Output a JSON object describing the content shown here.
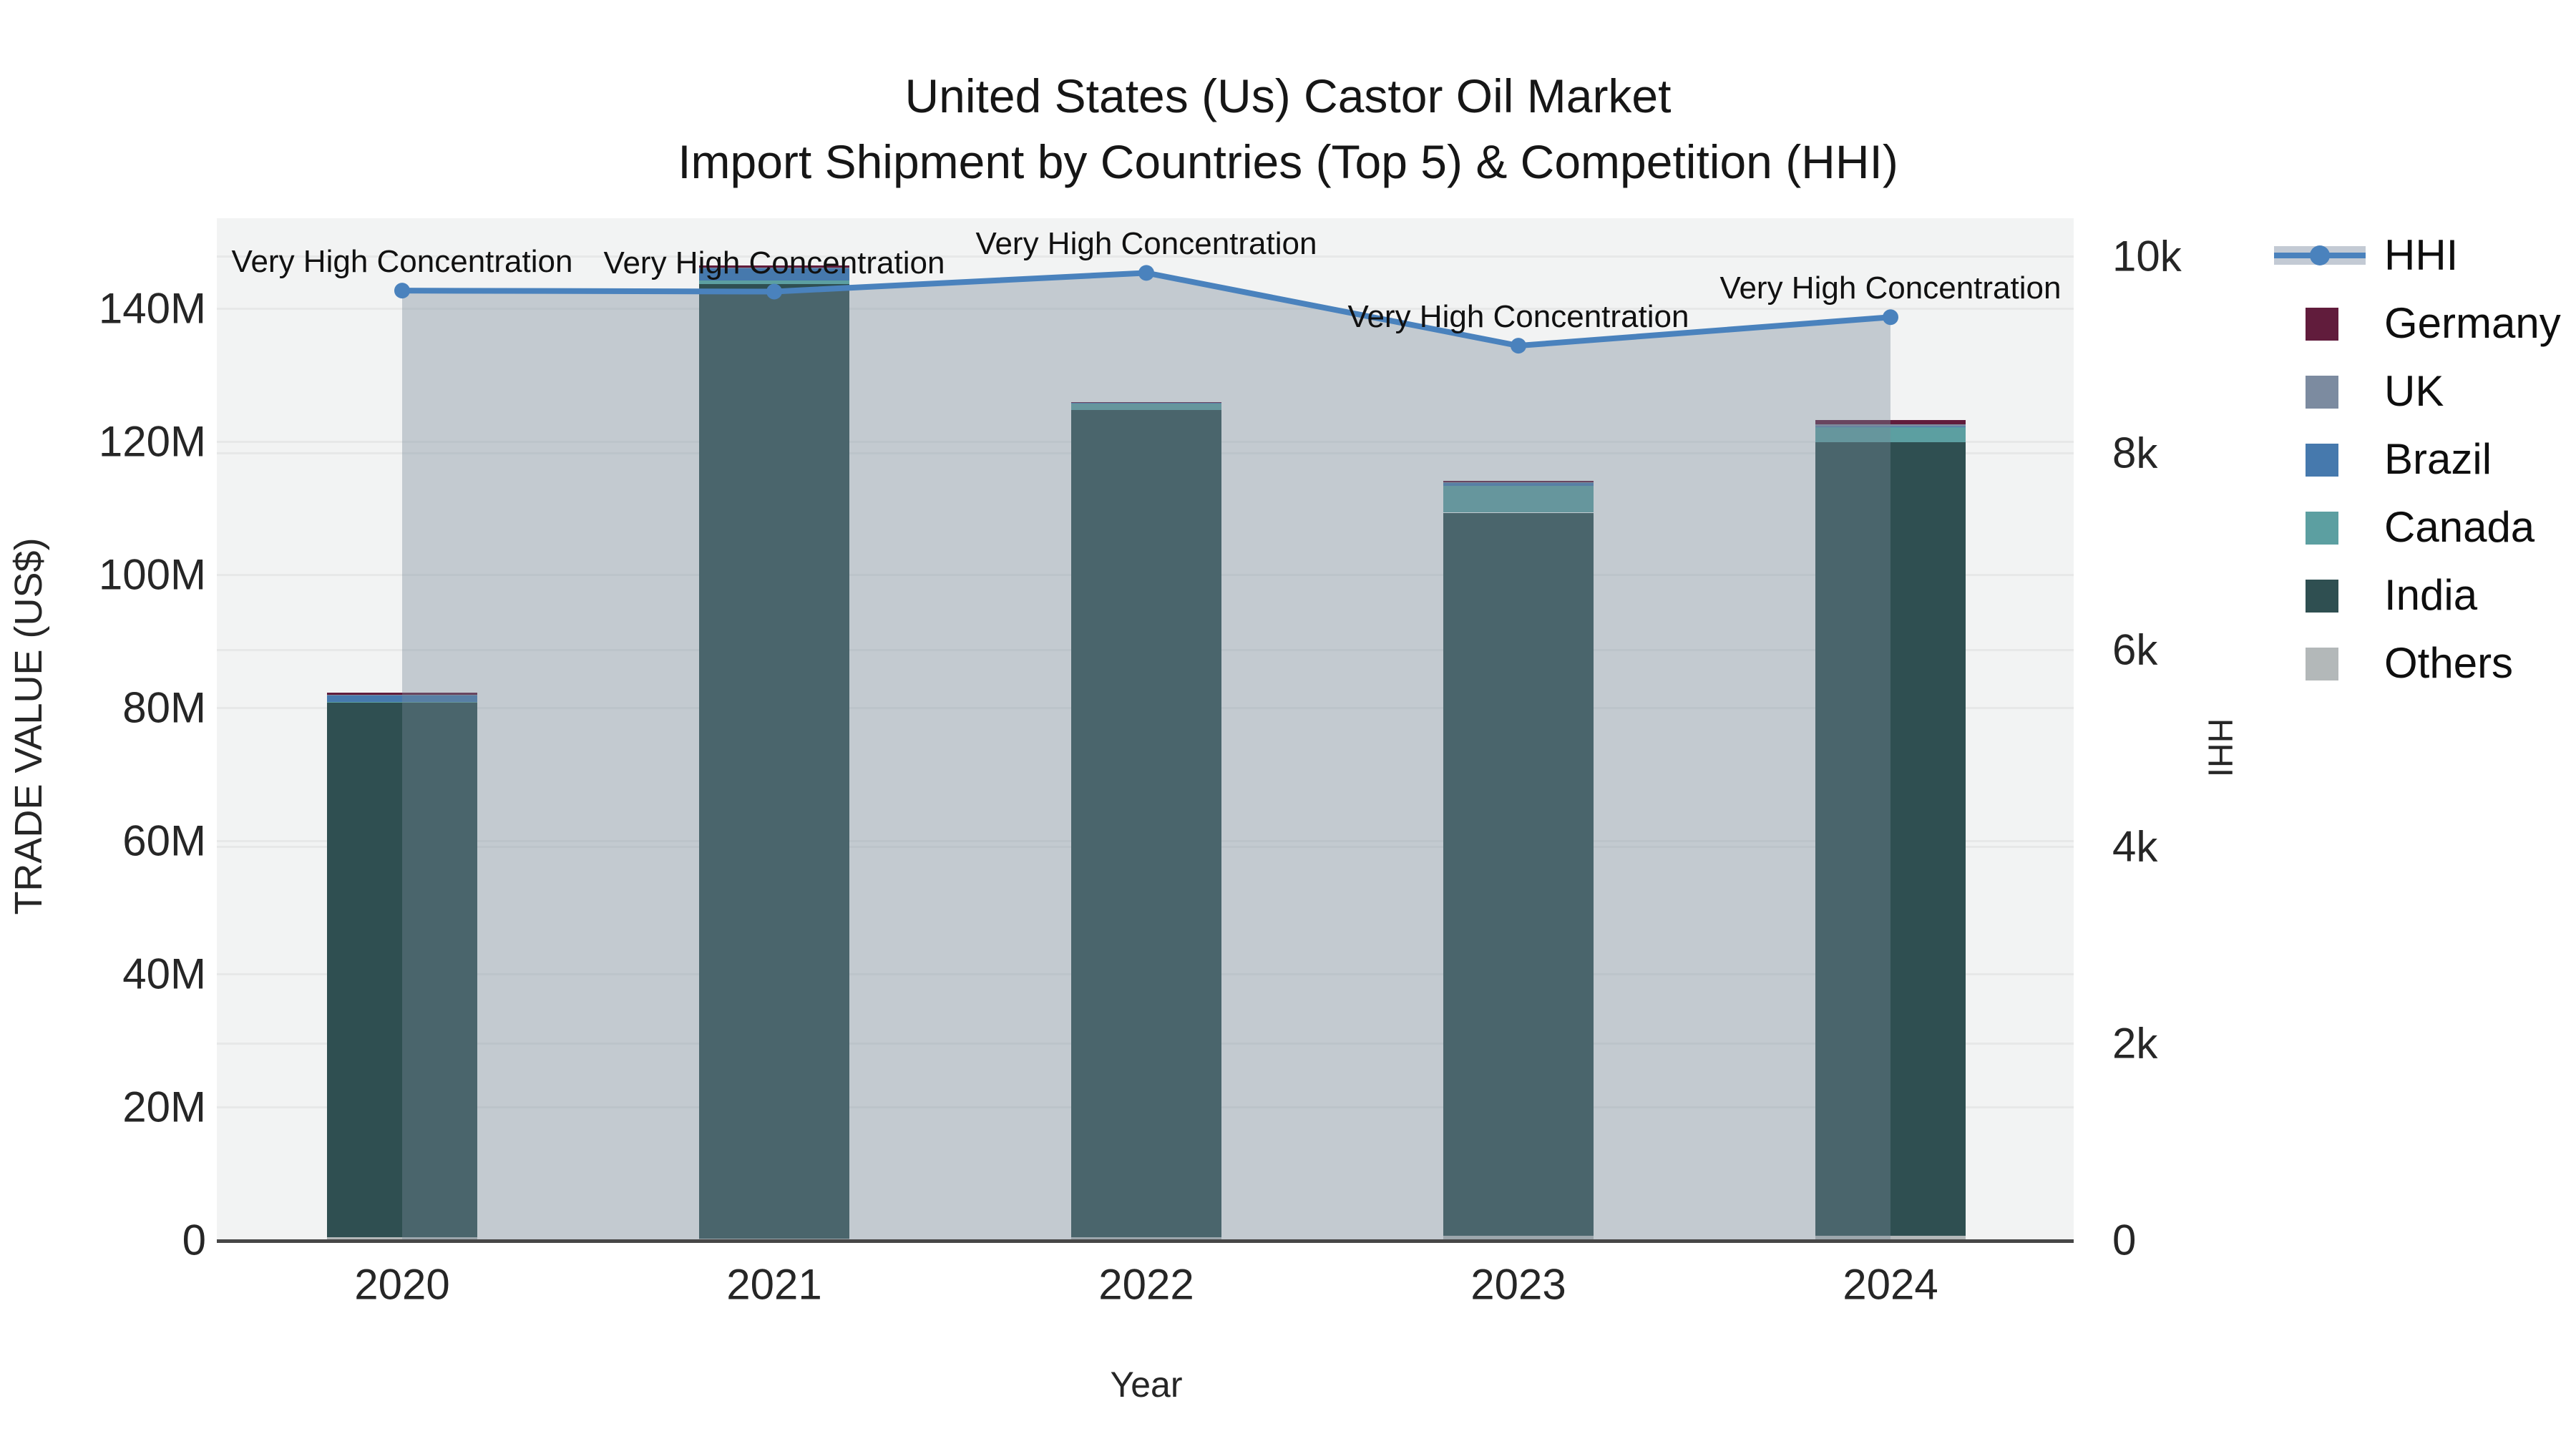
{
  "title": {
    "line1": "United States (Us) Castor Oil Market",
    "line2": "Import Shipment by Countries (Top 5) & Competition (HHI)"
  },
  "axes": {
    "left": {
      "title": "TRADE VALUE (US$)",
      "ticks": [
        "0",
        "20M",
        "40M",
        "60M",
        "80M",
        "100M",
        "120M",
        "140M"
      ],
      "tick_values_M": [
        0,
        20,
        40,
        60,
        80,
        100,
        120,
        140
      ],
      "range_M": [
        0,
        153.5
      ]
    },
    "right": {
      "title": "HHI",
      "ticks": [
        "0",
        "2k",
        "4k",
        "6k",
        "8k",
        "10k"
      ],
      "tick_values": [
        0,
        2000,
        4000,
        6000,
        8000,
        10000
      ],
      "range": [
        0,
        10385
      ]
    },
    "x": {
      "title": "Year",
      "ticks": [
        "2020",
        "2021",
        "2022",
        "2023",
        "2024"
      ]
    }
  },
  "legend": {
    "items": [
      {
        "label": "HHI",
        "type": "line-area",
        "color": "#4a82bd"
      },
      {
        "label": "Germany",
        "type": "square",
        "color": "#611c3c"
      },
      {
        "label": "UK",
        "type": "square",
        "color": "#7c8ba0"
      },
      {
        "label": "Brazil",
        "type": "square",
        "color": "#4679ad"
      },
      {
        "label": "Canada",
        "type": "square",
        "color": "#5c9fa1"
      },
      {
        "label": "India",
        "type": "square",
        "color": "#2f4f51"
      },
      {
        "label": "Others",
        "type": "square",
        "color": "#b3b8b9"
      }
    ]
  },
  "chart_data": {
    "type": "combo: stacked bar (left axis) + line with area (right axis)",
    "title": "United States (Us) Castor Oil Market — Import Shipment by Countries (Top 5) & Competition (HHI)",
    "categories": [
      "2020",
      "2021",
      "2022",
      "2023",
      "2024"
    ],
    "bar_unit": "US$ (millions), read off left axis",
    "stack_order_bottom_to_top": [
      "Others",
      "India",
      "Canada",
      "Brazil",
      "UK",
      "Germany"
    ],
    "series": [
      {
        "name": "Germany",
        "color": "#611c3c",
        "values": [
          0.3,
          0.3,
          0.05,
          0.2,
          0.65
        ]
      },
      {
        "name": "UK",
        "color": "#7c8ba0",
        "values": [
          0.05,
          0.05,
          0.05,
          0.05,
          0.25
        ]
      },
      {
        "name": "Brazil",
        "color": "#4679ad",
        "values": [
          1.0,
          1.9,
          0.15,
          0.55,
          0.15
        ]
      },
      {
        "name": "Canada",
        "color": "#5c9fa1",
        "values": [
          0.1,
          0.45,
          1.0,
          4.0,
          2.3
        ]
      },
      {
        "name": "India",
        "color": "#2f4f51",
        "values": [
          80.4,
          143.5,
          124.3,
          108.7,
          119.2
        ]
      },
      {
        "name": "Others",
        "color": "#b3b8b9",
        "values": [
          0.4,
          0.2,
          0.4,
          0.6,
          0.65
        ]
      }
    ],
    "bar_totals_M": [
      82.3,
      146.4,
      126.0,
      114.1,
      123.2
    ],
    "line_series": {
      "name": "HHI",
      "axis": "right",
      "color": "#4a82bd",
      "area_fill": "rgba(119,136,153,0.38)",
      "values": [
        9650,
        9640,
        9830,
        9090,
        9380
      ]
    },
    "annotation_text": "Very High Concentration",
    "annotated_points": [
      0,
      1,
      2,
      3,
      4
    ],
    "xlabel": "Year",
    "ylabel_left": "TRADE VALUE (US$)",
    "ylabel_right": "HHI",
    "grid": "horizontal gridlines for both y axes",
    "legend_position": "right, outside plot"
  }
}
